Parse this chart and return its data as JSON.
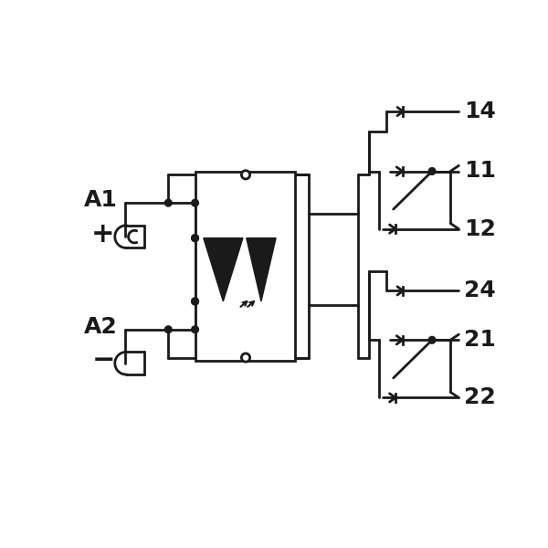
{
  "bg_color": "#ffffff",
  "line_color": "#1a1a1a",
  "lw": 2.0,
  "dot_r": 0.008,
  "figsize": [
    6.0,
    6.0
  ],
  "dpi": 100
}
